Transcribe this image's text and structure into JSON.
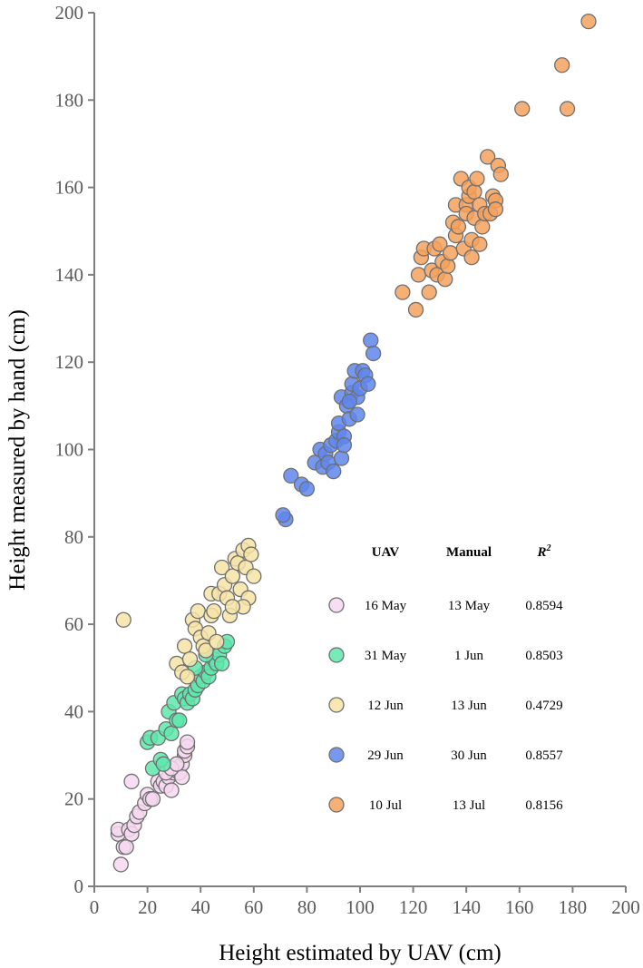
{
  "chart_data": {
    "type": "scatter",
    "xlabel": "Height estimated by UAV (cm)",
    "ylabel": "Height measured by hand  (cm)",
    "xlim": [
      0,
      200
    ],
    "ylim": [
      0,
      200
    ],
    "x_ticks": [
      "0",
      "20",
      "40",
      "60",
      "80",
      "100",
      "120",
      "140",
      "160",
      "180",
      "200"
    ],
    "y_ticks": [
      "0",
      "20",
      "40",
      "60",
      "80",
      "100",
      "120",
      "140",
      "160",
      "180",
      "200"
    ],
    "grid": false,
    "legend_position": "lower-right",
    "legend_headers": {
      "uav": "UAV",
      "manual": "Manual",
      "r2_base": "R",
      "r2_sup": "2"
    },
    "series": [
      {
        "uav": "16 May",
        "manual": "13 May",
        "r2": "0.8594",
        "color": "#f6d8f0",
        "points": [
          [
            9,
            12
          ],
          [
            10,
            5
          ],
          [
            9,
            13
          ],
          [
            11,
            9
          ],
          [
            12,
            9
          ],
          [
            13,
            13
          ],
          [
            14,
            12
          ],
          [
            15,
            14
          ],
          [
            16,
            16
          ],
          [
            17,
            17
          ],
          [
            19,
            19
          ],
          [
            20,
            21
          ],
          [
            21,
            20
          ],
          [
            22,
            20
          ],
          [
            24,
            24
          ],
          [
            25,
            23
          ],
          [
            26,
            24
          ],
          [
            27,
            23
          ],
          [
            28,
            25
          ],
          [
            29,
            22
          ],
          [
            30,
            26
          ],
          [
            31,
            27
          ],
          [
            32,
            26
          ],
          [
            33,
            28
          ],
          [
            33,
            25
          ],
          [
            34,
            30
          ],
          [
            34,
            31
          ],
          [
            35,
            32
          ],
          [
            35,
            33
          ],
          [
            14,
            24
          ],
          [
            27,
            26
          ],
          [
            29,
            27
          ],
          [
            31,
            28
          ]
        ]
      },
      {
        "uav": "31 May",
        "manual": "1 Jun",
        "r2": "0.8503",
        "color": "#5ee8ab",
        "points": [
          [
            20,
            33
          ],
          [
            21,
            34
          ],
          [
            22,
            27
          ],
          [
            24,
            34
          ],
          [
            25,
            29
          ],
          [
            26,
            28
          ],
          [
            27,
            36
          ],
          [
            28,
            40
          ],
          [
            29,
            35
          ],
          [
            30,
            42
          ],
          [
            31,
            38
          ],
          [
            32,
            38
          ],
          [
            33,
            44
          ],
          [
            34,
            43
          ],
          [
            35,
            42
          ],
          [
            36,
            44
          ],
          [
            37,
            43
          ],
          [
            38,
            45
          ],
          [
            39,
            46
          ],
          [
            40,
            48
          ],
          [
            41,
            47
          ],
          [
            42,
            49
          ],
          [
            43,
            48
          ],
          [
            44,
            50
          ],
          [
            45,
            52
          ],
          [
            46,
            51
          ],
          [
            47,
            53
          ],
          [
            48,
            51
          ],
          [
            49,
            55
          ],
          [
            50,
            56
          ],
          [
            38,
            50
          ],
          [
            42,
            53
          ]
        ]
      },
      {
        "uav": "12 Jun",
        "manual": "13 Jun",
        "r2": "0.4729",
        "color": "#f6e3a6",
        "points": [
          [
            11,
            61
          ],
          [
            31,
            51
          ],
          [
            33,
            49
          ],
          [
            34,
            55
          ],
          [
            35,
            48
          ],
          [
            36,
            52
          ],
          [
            37,
            61
          ],
          [
            38,
            59
          ],
          [
            39,
            63
          ],
          [
            40,
            57
          ],
          [
            41,
            55
          ],
          [
            42,
            54
          ],
          [
            43,
            58
          ],
          [
            44,
            62
          ],
          [
            44,
            67
          ],
          [
            45,
            63
          ],
          [
            46,
            56
          ],
          [
            47,
            67
          ],
          [
            48,
            73
          ],
          [
            49,
            69
          ],
          [
            50,
            66
          ],
          [
            51,
            62
          ],
          [
            52,
            71
          ],
          [
            53,
            75
          ],
          [
            54,
            74
          ],
          [
            55,
            68
          ],
          [
            56,
            77
          ],
          [
            57,
            73
          ],
          [
            58,
            78
          ],
          [
            58,
            66
          ],
          [
            59,
            76
          ],
          [
            60,
            71
          ],
          [
            56,
            64
          ],
          [
            52,
            64
          ]
        ]
      },
      {
        "uav": "29 Jun",
        "manual": "30 Jun",
        "r2": "0.8557",
        "color": "#5f86ec",
        "points": [
          [
            72,
            84
          ],
          [
            71,
            85
          ],
          [
            74,
            94
          ],
          [
            78,
            92
          ],
          [
            80,
            91
          ],
          [
            83,
            97
          ],
          [
            85,
            100
          ],
          [
            86,
            96
          ],
          [
            87,
            99
          ],
          [
            88,
            97
          ],
          [
            89,
            101
          ],
          [
            90,
            95
          ],
          [
            91,
            102
          ],
          [
            92,
            104
          ],
          [
            92,
            106
          ],
          [
            93,
            98
          ],
          [
            93,
            112
          ],
          [
            94,
            103
          ],
          [
            95,
            110
          ],
          [
            96,
            107
          ],
          [
            97,
            113
          ],
          [
            97,
            115
          ],
          [
            98,
            118
          ],
          [
            99,
            112
          ],
          [
            99,
            108
          ],
          [
            100,
            114
          ],
          [
            101,
            118
          ],
          [
            102,
            117
          ],
          [
            103,
            115
          ],
          [
            104,
            125
          ],
          [
            105,
            122
          ],
          [
            94,
            101
          ],
          [
            96,
            111
          ]
        ]
      },
      {
        "uav": "10 Jul",
        "manual": "13 Jul",
        "r2": "0.8156",
        "color": "#f5a15c",
        "points": [
          [
            116,
            136
          ],
          [
            121,
            132
          ],
          [
            122,
            140
          ],
          [
            123,
            144
          ],
          [
            124,
            146
          ],
          [
            126,
            136
          ],
          [
            127,
            141
          ],
          [
            128,
            146
          ],
          [
            129,
            140
          ],
          [
            130,
            147
          ],
          [
            131,
            143
          ],
          [
            132,
            139
          ],
          [
            133,
            142
          ],
          [
            134,
            145
          ],
          [
            135,
            152
          ],
          [
            136,
            149
          ],
          [
            136,
            156
          ],
          [
            137,
            151
          ],
          [
            138,
            162
          ],
          [
            139,
            146
          ],
          [
            140,
            156
          ],
          [
            140,
            154
          ],
          [
            141,
            158
          ],
          [
            141,
            160
          ],
          [
            142,
            148
          ],
          [
            142,
            144
          ],
          [
            143,
            153
          ],
          [
            143,
            159
          ],
          [
            144,
            162
          ],
          [
            145,
            147
          ],
          [
            145,
            156
          ],
          [
            146,
            151
          ],
          [
            147,
            154
          ],
          [
            148,
            167
          ],
          [
            149,
            154
          ],
          [
            150,
            158
          ],
          [
            151,
            157
          ],
          [
            151,
            155
          ],
          [
            152,
            165
          ],
          [
            153,
            163
          ],
          [
            161,
            178
          ],
          [
            176,
            188
          ],
          [
            178,
            178
          ],
          [
            186,
            198
          ]
        ]
      }
    ]
  }
}
